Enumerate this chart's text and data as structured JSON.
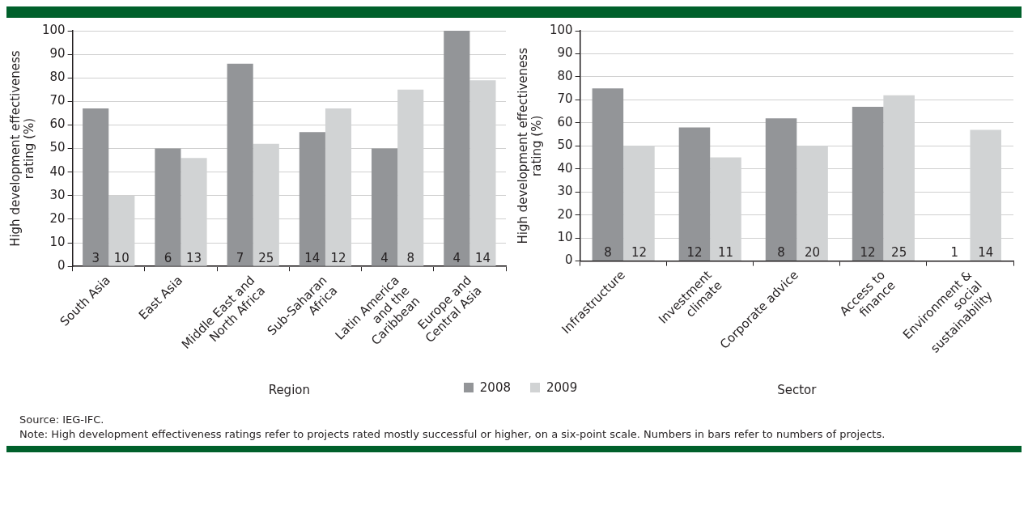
{
  "chart_data": [
    {
      "type": "bar",
      "xlabel": "Region",
      "ylabel": "High development effectiveness rating (%)",
      "categories": [
        "South Asia",
        "East Asia",
        "Middle East and North Africa",
        "Sub-Saharan Africa",
        "Latin America and the Caribbean",
        "Europe and Central Asia"
      ],
      "series": [
        {
          "name": "2008",
          "color": "#939598",
          "values": [
            67,
            50,
            86,
            57,
            50,
            100
          ]
        },
        {
          "name": "2009",
          "color": "#d1d3d4",
          "values": [
            30,
            46,
            52,
            67,
            75,
            79
          ]
        }
      ],
      "ylim": [
        0,
        100
      ],
      "yticks": [
        0,
        10,
        20,
        30,
        40,
        50,
        60,
        70,
        80,
        90,
        100
      ],
      "grid": "y",
      "legend": "bottom",
      "annotations": [
        {
          "text": "3",
          "x": "South Asia",
          "y": 0
        },
        {
          "text": "10",
          "x": "South Asia",
          "y": 0
        },
        {
          "text": "6",
          "x": "East Asia",
          "y": 0
        },
        {
          "text": "13",
          "x": "East Asia",
          "y": 0
        },
        {
          "text": "7",
          "x": "Middle East and North Africa",
          "y": 0
        },
        {
          "text": "25",
          "x": "Middle East and North Africa",
          "y": 0
        },
        {
          "text": "14",
          "x": "Sub-Saharan Africa",
          "y": 0
        },
        {
          "text": "12",
          "x": "Sub-Saharan Africa",
          "y": 0
        },
        {
          "text": "4",
          "x": "Latin America and the Caribbean",
          "y": 0
        },
        {
          "text": "8",
          "x": "Latin America and the Caribbean",
          "y": 0
        },
        {
          "text": "4",
          "x": "Europe and Central Asia",
          "y": 0
        },
        {
          "text": "14",
          "x": "Europe and Central Asia",
          "y": 0
        }
      ]
    },
    {
      "type": "bar",
      "xlabel": "Sector",
      "ylabel": "High development effectiveness rating (%)",
      "categories": [
        "Infrastructure",
        "Investment climate",
        "Corporate advice",
        "Access to finance",
        "Environment & social sustainability"
      ],
      "series": [
        {
          "name": "2008",
          "color": "#939598",
          "values": [
            75,
            58,
            62,
            67,
            0
          ]
        },
        {
          "name": "2009",
          "color": "#d1d3d4",
          "values": [
            50,
            45,
            50,
            72,
            57
          ]
        }
      ],
      "ylim": [
        0,
        100
      ],
      "yticks": [
        0,
        10,
        20,
        30,
        40,
        50,
        60,
        70,
        80,
        90,
        100
      ],
      "grid": "y",
      "annotations": [
        {
          "text": "8",
          "x": "Infrastructure",
          "y": 0
        },
        {
          "text": "12",
          "x": "Infrastructure",
          "y": 0
        },
        {
          "text": "12",
          "x": "Investment climate",
          "y": 0
        },
        {
          "text": "11",
          "x": "Investment climate",
          "y": 0
        },
        {
          "text": "8",
          "x": "Corporate advice",
          "y": 0
        },
        {
          "text": "20",
          "x": "Corporate advice",
          "y": 0
        },
        {
          "text": "12",
          "x": "Access to finance",
          "y": 0
        },
        {
          "text": "25",
          "x": "Access to finance",
          "y": 0
        },
        {
          "text": "1",
          "x": "Environment & social sustainability",
          "y": 0
        },
        {
          "text": "14",
          "x": "Environment & social sustainability",
          "y": 0
        },
        "Source: IEG-IFC.",
        "Note: High development effectiveness ratings refer to projects rated mostly successful or higher, on a six-point scale. Numbers in bars refer to numbers of projects."
      ]
    }
  ]
}
